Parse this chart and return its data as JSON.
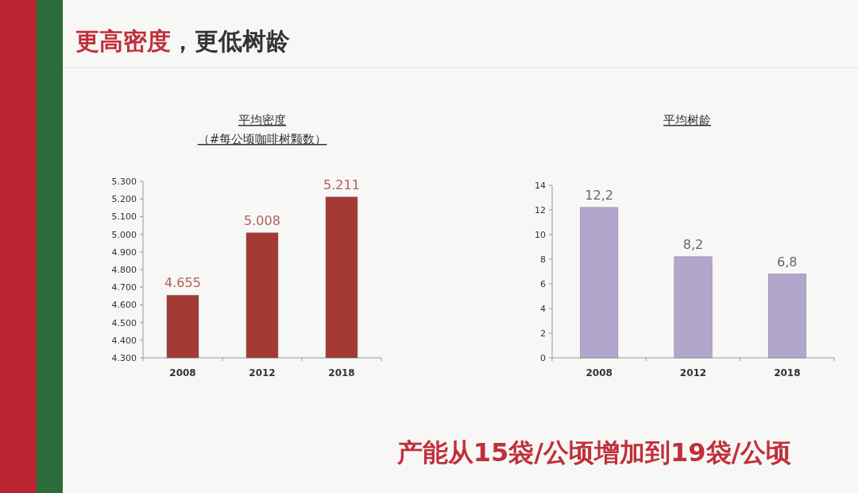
{
  "chart_data": [
    {
      "type": "other",
      "title": "更高密度，更低树龄",
      "annotations": [
        "产能从15袋/公顷增加到19袋/公顷"
      ]
    },
    {
      "type": "bar",
      "title": "平均密度",
      "subtitle": "（#每公顷咖啡树颗数）",
      "categories": [
        "2008",
        "2012",
        "2018"
      ],
      "values": [
        4655,
        5008,
        5211
      ],
      "value_labels": [
        "4.655",
        "5.008",
        "5.211"
      ],
      "color": "#a33a35",
      "ylim": [
        4300,
        5300
      ],
      "yticks": [
        {
          "value": 4300,
          "label": "4.300"
        },
        {
          "value": 4400,
          "label": "4.400"
        },
        {
          "value": 4500,
          "label": "4.500"
        },
        {
          "value": 4600,
          "label": "4.600"
        },
        {
          "value": 4700,
          "label": "4.700"
        },
        {
          "value": 4800,
          "label": "4.800"
        },
        {
          "value": 4900,
          "label": "4.900"
        },
        {
          "value": 5000,
          "label": "5.000"
        },
        {
          "value": 5100,
          "label": "5.100"
        },
        {
          "value": 5200,
          "label": "5.200"
        },
        {
          "value": 5300,
          "label": "5.300"
        }
      ]
    },
    {
      "type": "bar",
      "title": "平均树龄",
      "categories": [
        "2008",
        "2012",
        "2018"
      ],
      "values": [
        12.2,
        8.2,
        6.8
      ],
      "value_labels": [
        "12,2",
        "8,2",
        "6,8"
      ],
      "color": "#b3a6cc",
      "ylim": [
        0,
        14
      ],
      "yticks": [
        0,
        2,
        4,
        6,
        8,
        10,
        12,
        14
      ]
    }
  ]
}
